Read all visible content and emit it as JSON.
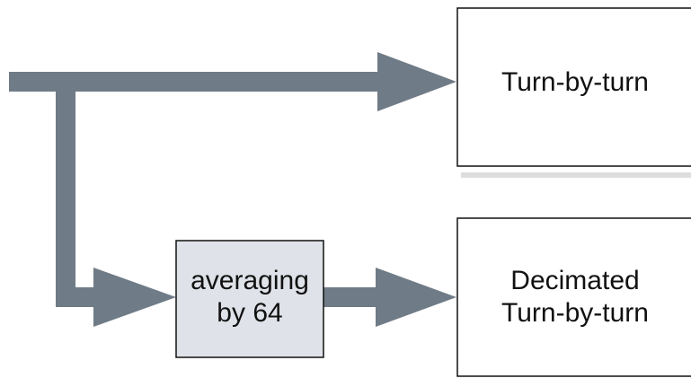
{
  "nodes": [
    {
      "label": "Turn-by-turn"
    },
    {
      "label": "averaging by 64"
    },
    {
      "label": "Decimated Turn-by-turn"
    }
  ]
}
